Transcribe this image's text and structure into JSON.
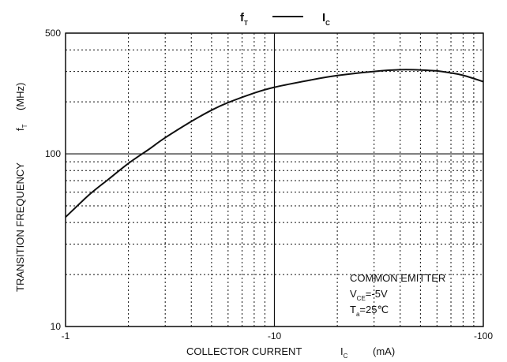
{
  "chart_data": {
    "type": "line",
    "title": "fT — IC",
    "title_parts": {
      "y_symbol": "f",
      "y_sub": "T",
      "x_symbol": "I",
      "x_sub": "C"
    },
    "xlabel": "COLLECTOR CURRENT",
    "xlabel_symbol": "I",
    "xlabel_sub": "C",
    "xlabel_unit": "(mA)",
    "ylabel": "TRANSITION FREQUENCY",
    "ylabel_symbol": "f",
    "ylabel_sub": "T",
    "ylabel_unit": "(MHz)",
    "x_scale": "log",
    "y_scale": "log",
    "xlim": [
      -1,
      -100
    ],
    "ylim": [
      10,
      500
    ],
    "x_ticks": [
      -1,
      -10,
      -100
    ],
    "x_tick_labels": [
      "-1",
      "-10",
      "-100"
    ],
    "y_ticks": [
      10,
      100,
      500
    ],
    "y_tick_labels": [
      "10",
      "100",
      "500"
    ],
    "grid": "dotted minor, solid at decades",
    "series": [
      {
        "x": [
          -1,
          -1.3,
          -1.6,
          -2,
          -2.5,
          -3,
          -4,
          -5,
          -6,
          -8,
          -10,
          -15,
          -20,
          -30,
          -40,
          -50,
          -60,
          -70,
          -80,
          -100
        ],
        "y": [
          43,
          58,
          71,
          88,
          106,
          124,
          154,
          179,
          198,
          225,
          243,
          268,
          284,
          300,
          307,
          306,
          302,
          294,
          285,
          262
        ]
      }
    ],
    "annotations": [
      {
        "text": "COMMON EMITTER",
        "position": "bottom-right"
      },
      {
        "text": "V",
        "sub": "CE",
        "suffix": "=-5V"
      },
      {
        "text": "T",
        "sub": "a",
        "suffix": "=25℃"
      }
    ]
  }
}
